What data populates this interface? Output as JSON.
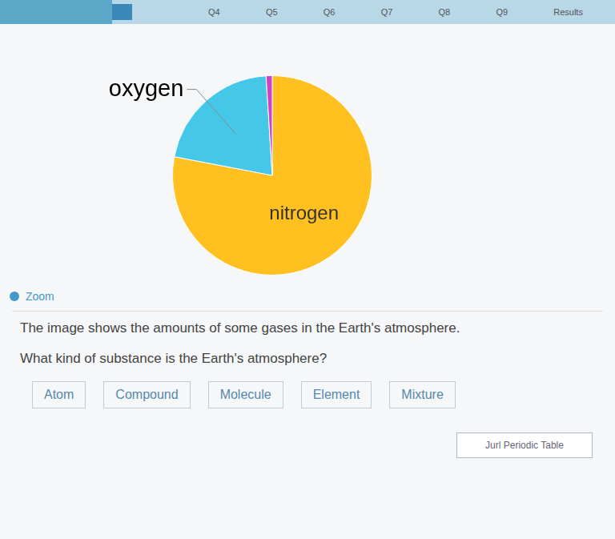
{
  "chart_data": {
    "type": "pie",
    "categories": [
      "nitrogen",
      "oxygen",
      null
    ],
    "values": [
      78,
      21,
      1
    ],
    "colors": [
      "#FFC020",
      "#45C8E8",
      "#CC44CC"
    ],
    "annotations": [
      "Q4",
      "Q5",
      "Q6",
      "Q7",
      "Q8",
      "Q9",
      "Results",
      "Zoom",
      "The image shows the amounts of some gases in the Earth's atmosphere.",
      "What kind of substance is the Earth's atmosphere?",
      "Atom",
      "Compound",
      "Molecule",
      "Element",
      "Mixture",
      "Jurl Periodic Table"
    ]
  }
}
